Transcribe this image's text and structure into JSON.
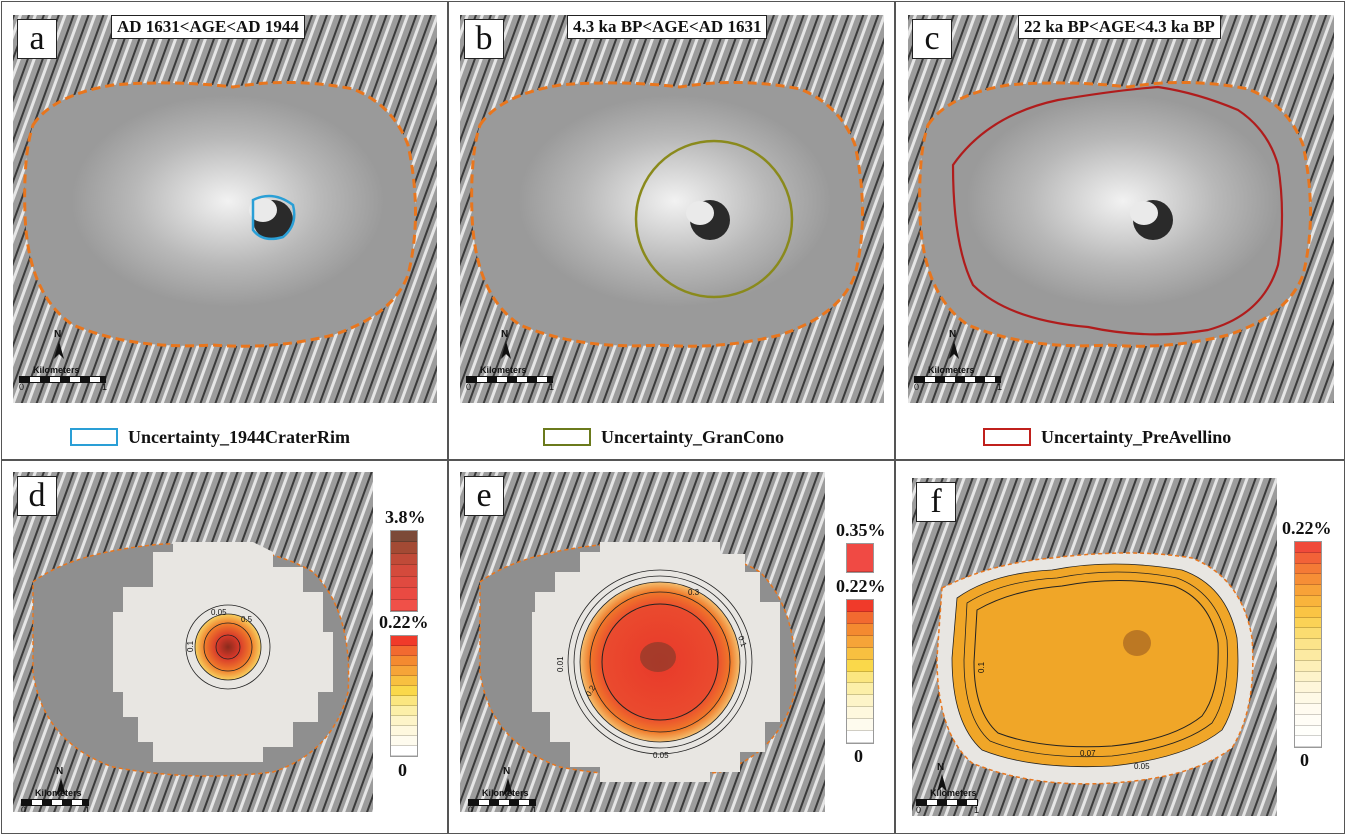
{
  "panels": [
    {
      "letter": "a",
      "age": "AD 1631<AGE<AD 1944",
      "legend": "Uncertainty_1944CraterRim",
      "legend_color": "#2a9fd6"
    },
    {
      "letter": "b",
      "age": "4.3 ka BP<AGE<AD 1631",
      "legend": "Uncertainty_GranCono",
      "legend_color": "#6b7a1c"
    },
    {
      "letter": "c",
      "age": "22 ka BP<AGE<4.3 ka BP",
      "legend": "Uncertainty_PreAvellino",
      "legend_color": "#c0201c"
    },
    {
      "letter": "d"
    },
    {
      "letter": "e"
    },
    {
      "letter": "f"
    }
  ],
  "north_label": "N",
  "scale": {
    "label": "Kilometers",
    "start": "0",
    "end": "1"
  },
  "colorbars": {
    "d": {
      "top": "3.8%",
      "mid": "0.22%",
      "bottom": "0"
    },
    "e": {
      "top": "0.35%",
      "mid": "0.22%",
      "bottom": "0"
    },
    "f": {
      "top": "0.22%",
      "bottom": "0"
    }
  },
  "contours": {
    "d": [
      "0.05",
      "0.5",
      "0.1"
    ],
    "e": [
      "0.01",
      "0.05",
      "0.1",
      "0.2",
      "0.3"
    ],
    "f": [
      "0.1",
      "0.07",
      "0.05"
    ]
  },
  "colors": {
    "boundary": "#e8761e",
    "hill": "#9a9a9a",
    "hazard_red": "#e8392a",
    "hazard_orange": "#f0a020"
  }
}
